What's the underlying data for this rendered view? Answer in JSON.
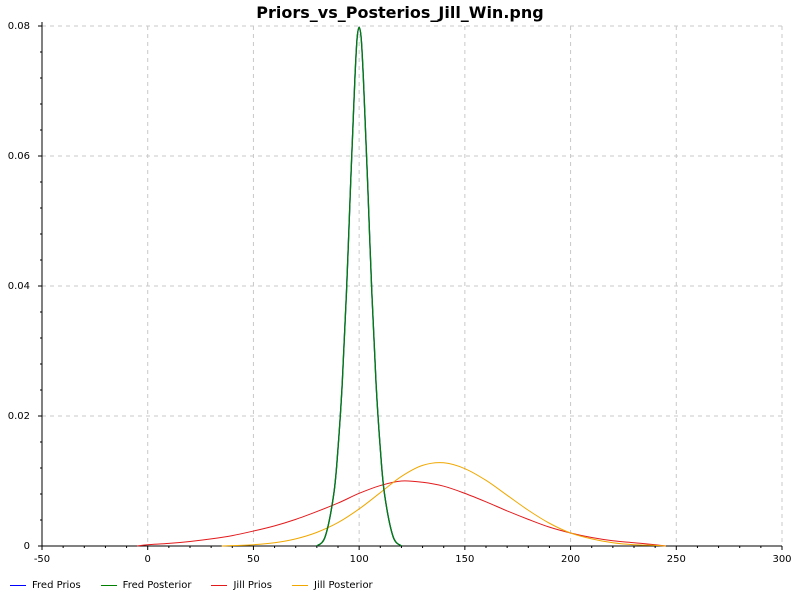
{
  "chart_data": {
    "type": "line",
    "title": "Priors_vs_Posterios_Jill_Win.png",
    "xlabel": "",
    "ylabel": "",
    "xlim": [
      -50,
      300
    ],
    "ylim": [
      0,
      0.08
    ],
    "x_ticks": [
      -50,
      0,
      50,
      100,
      150,
      200,
      250,
      300
    ],
    "y_ticks": [
      0,
      0.02,
      0.04,
      0.06,
      0.08
    ],
    "x_tick_labels": [
      "-50",
      "0",
      "50",
      "100",
      "150",
      "200",
      "250",
      "300"
    ],
    "y_tick_labels": [
      "0",
      "0.02",
      "0.04",
      "0.06",
      "0.08"
    ],
    "grid": true,
    "legend_position": "bottom-left",
    "series": [
      {
        "name": "Fred Prios",
        "color": "#0000ff",
        "x": [
          80,
          84,
          88,
          90,
          92,
          94,
          96,
          97,
          98,
          99,
          100,
          101,
          102,
          103,
          104,
          106,
          108,
          110,
          112,
          116,
          120
        ],
        "y": [
          0.0,
          0.0015,
          0.008,
          0.015,
          0.025,
          0.039,
          0.056,
          0.064,
          0.072,
          0.078,
          0.0798,
          0.078,
          0.072,
          0.064,
          0.056,
          0.039,
          0.025,
          0.015,
          0.008,
          0.0015,
          0.0
        ]
      },
      {
        "name": "Fred Posterior",
        "color": "#008000",
        "x": [
          80,
          84,
          88,
          90,
          92,
          94,
          96,
          97,
          98,
          99,
          100,
          101,
          102,
          103,
          104,
          106,
          108,
          110,
          112,
          116,
          120
        ],
        "y": [
          0.0,
          0.0015,
          0.008,
          0.015,
          0.025,
          0.039,
          0.056,
          0.064,
          0.072,
          0.078,
          0.0798,
          0.078,
          0.072,
          0.064,
          0.056,
          0.039,
          0.025,
          0.015,
          0.008,
          0.0015,
          0.0
        ]
      },
      {
        "name": "Jill Prios",
        "color": "#e31a1c",
        "x": [
          -5,
          0,
          10,
          20,
          30,
          40,
          50,
          60,
          70,
          80,
          90,
          100,
          110,
          120,
          130,
          140,
          150,
          160,
          170,
          180,
          190,
          200,
          210,
          220,
          230,
          240,
          245
        ],
        "y": [
          0.0,
          0.0002,
          0.0004,
          0.0007,
          0.0011,
          0.0016,
          0.0023,
          0.0031,
          0.0041,
          0.0053,
          0.0066,
          0.0081,
          0.0093,
          0.01,
          0.0098,
          0.0092,
          0.0081,
          0.0068,
          0.0054,
          0.0041,
          0.0029,
          0.002,
          0.0013,
          0.0008,
          0.0005,
          0.0002,
          0.0
        ]
      },
      {
        "name": "Jill Posterior",
        "color": "#f0a800",
        "x": [
          35,
          50,
          60,
          70,
          80,
          90,
          100,
          110,
          120,
          130,
          140,
          150,
          160,
          170,
          180,
          190,
          200,
          210,
          220,
          230,
          240,
          245
        ],
        "y": [
          0.0,
          0.0002,
          0.0005,
          0.0011,
          0.0021,
          0.0036,
          0.0057,
          0.0082,
          0.0107,
          0.0124,
          0.0128,
          0.0119,
          0.0101,
          0.0078,
          0.0055,
          0.0035,
          0.002,
          0.0011,
          0.0005,
          0.0002,
          0.0001,
          0.0
        ]
      }
    ]
  }
}
